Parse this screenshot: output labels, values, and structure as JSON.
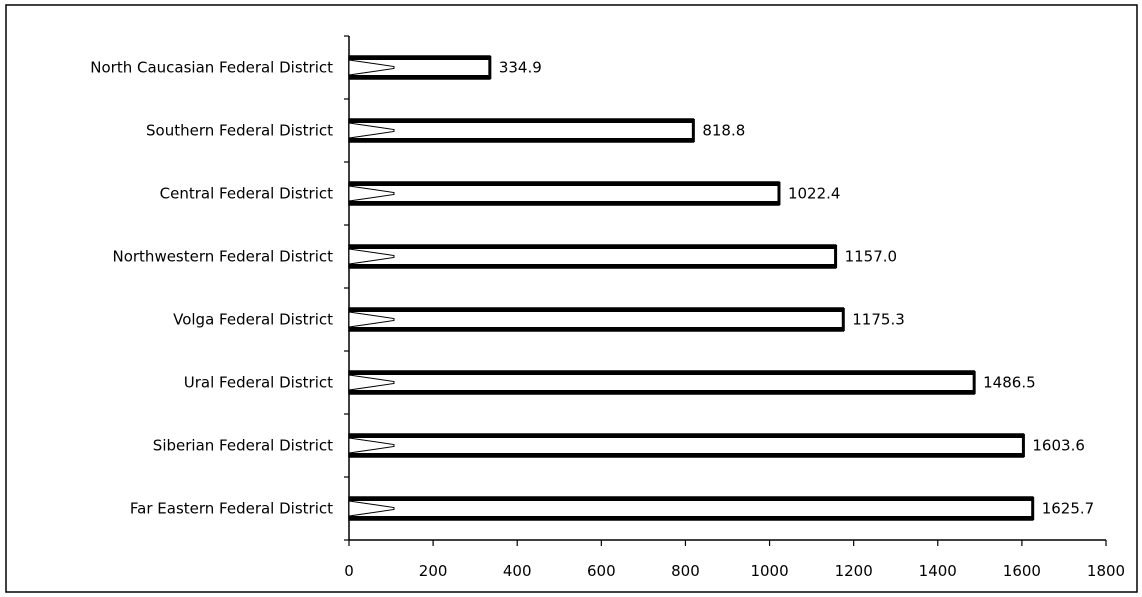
{
  "chart_data": {
    "type": "bar",
    "orientation": "horizontal",
    "title": "",
    "xlabel": "",
    "ylabel": "",
    "categories": [
      "North Caucasian Federal District",
      "Southern Federal District",
      "Central Federal District",
      "Northwestern Federal District",
      "Volga Federal District",
      "Ural Federal District",
      "Siberian Federal District",
      "Far Eastern Federal District"
    ],
    "values": [
      334.9,
      818.8,
      1022.4,
      1157.0,
      1175.3,
      1486.5,
      1603.6,
      1625.7
    ],
    "value_labels": [
      "334.9",
      "818.8",
      "1022.4",
      "1157.0",
      "1175.3",
      "1486.5",
      "1603.6",
      "1625.7"
    ],
    "xlim": [
      0,
      1800
    ],
    "xticks": [
      0,
      200,
      400,
      600,
      800,
      1000,
      1200,
      1400,
      1600,
      1800
    ],
    "grid": false,
    "legend": "none",
    "colors": {
      "bar_fill": "#ffffff",
      "bar_stroke": "#000000"
    }
  }
}
